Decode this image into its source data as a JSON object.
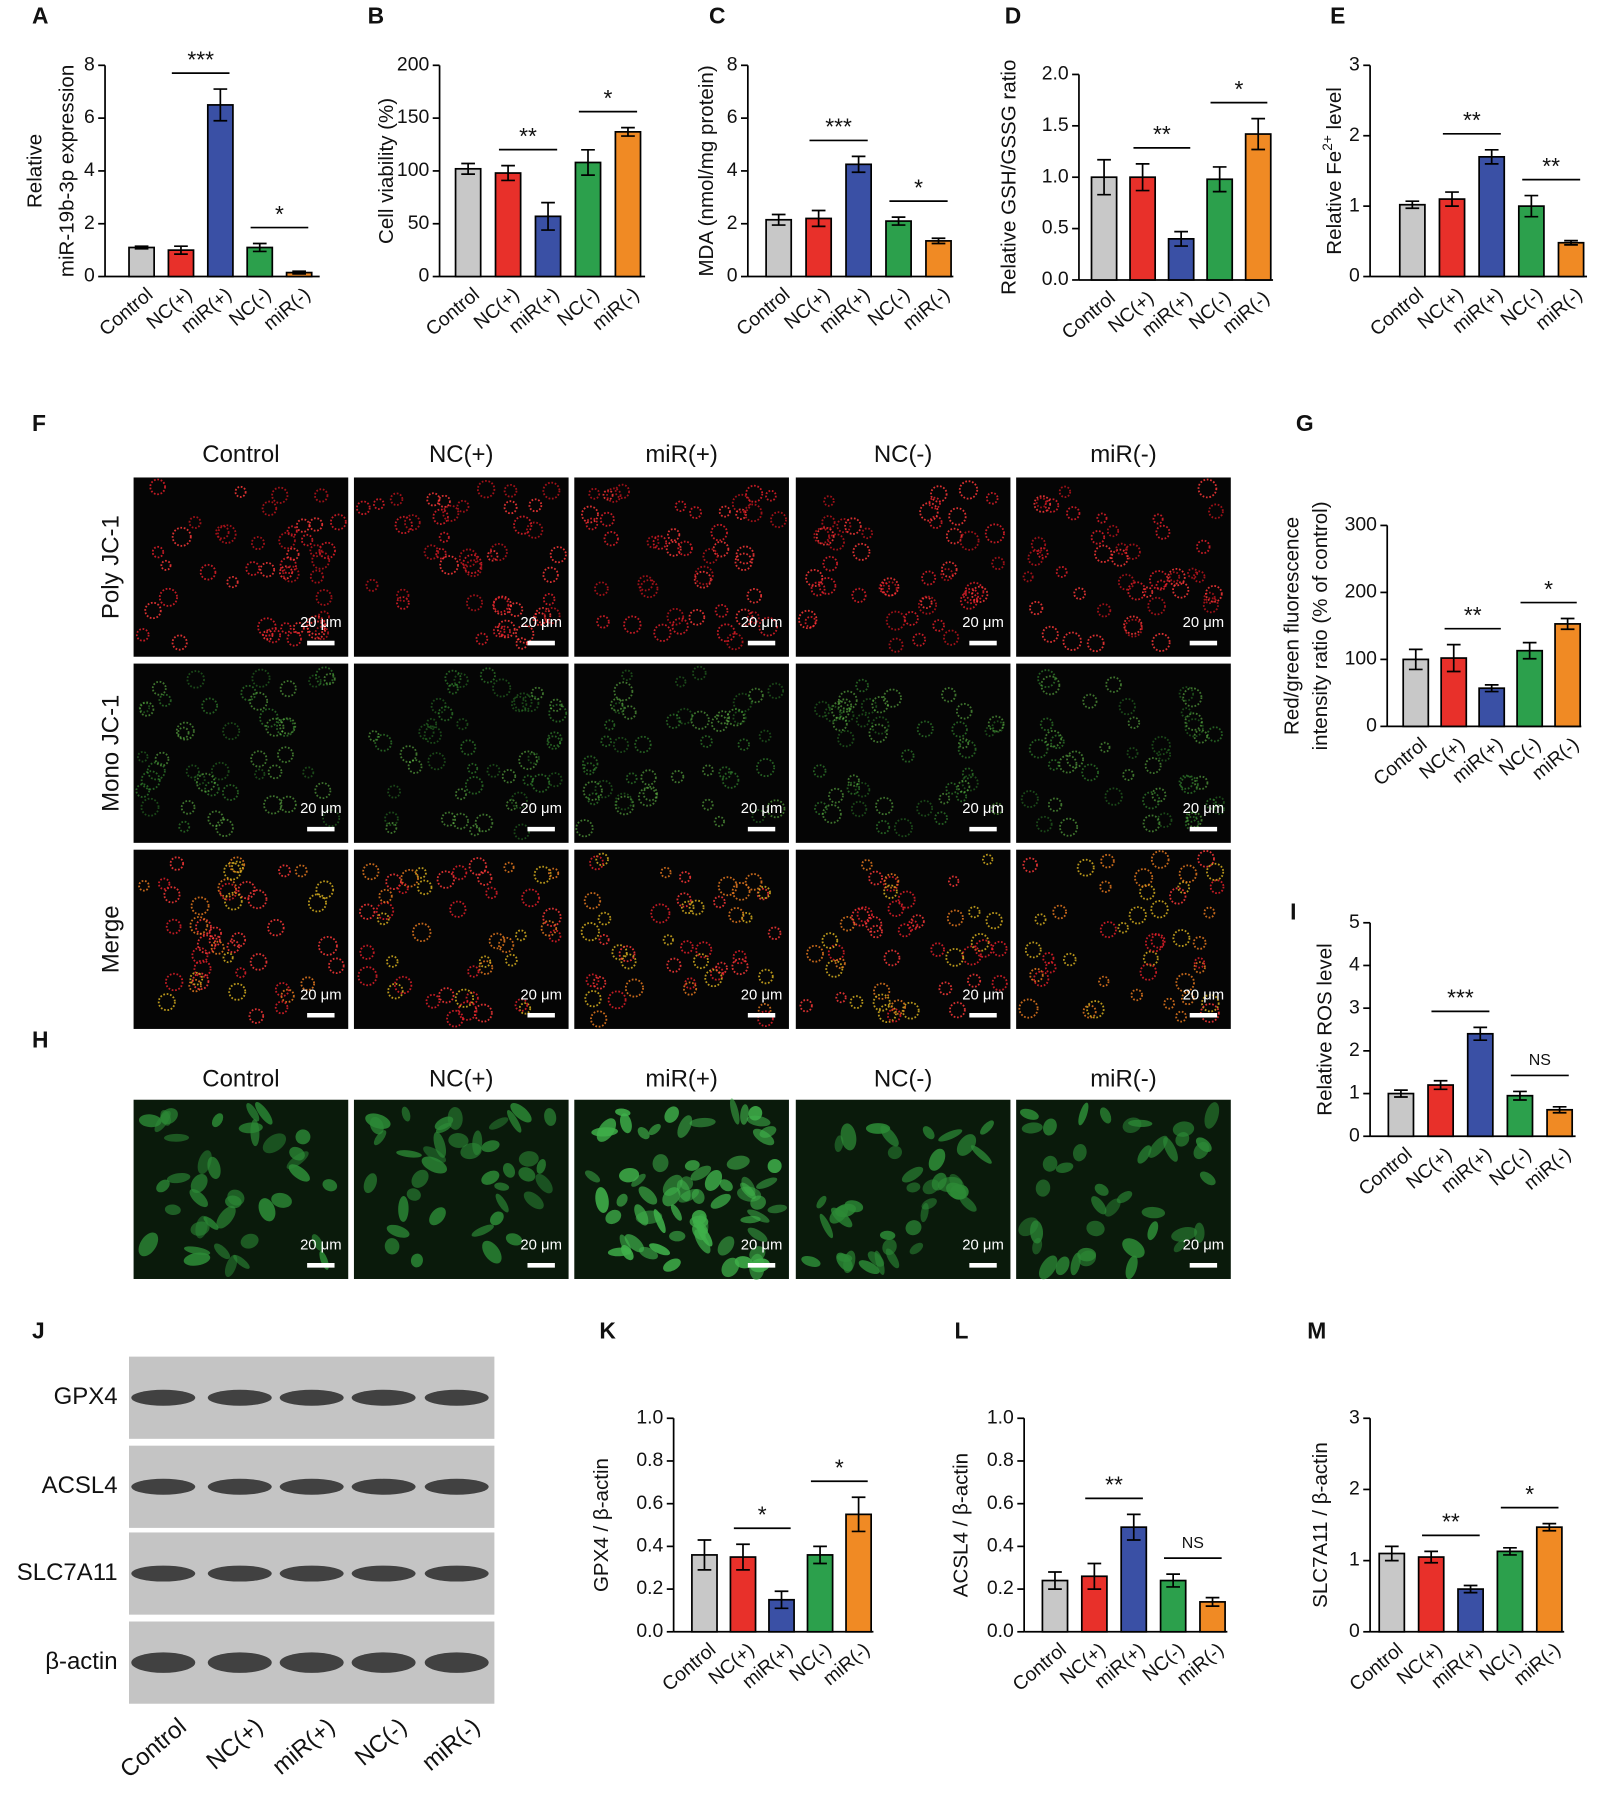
{
  "chart_data": [
    {
      "type": "bar",
      "label": "A",
      "ylabel": [
        "Relative",
        "miR-19b-3p expression"
      ],
      "categories": [
        "Control",
        "NC(+)",
        "miR(+)",
        "NC(-)",
        "miR(-)"
      ],
      "colors": [
        "#c8c8c8",
        "#e8302a",
        "#3a50a5",
        "#2ca04c",
        "#f08a24"
      ],
      "values": [
        1.1,
        1.0,
        6.5,
        1.1,
        0.15
      ],
      "errors": [
        0.05,
        0.15,
        0.6,
        0.15,
        0.05
      ],
      "ylim": [
        0,
        8
      ],
      "yticks": [
        0,
        2,
        4,
        6,
        8
      ],
      "significance": [
        {
          "from": 1,
          "to": 2,
          "label": "***"
        },
        {
          "from": 3,
          "to": 4,
          "label": "*"
        }
      ]
    },
    {
      "type": "bar",
      "label": "B",
      "ylabel": [
        "Cell viability (%)"
      ],
      "categories": [
        "Control",
        "NC(+)",
        "miR(+)",
        "NC(-)",
        "miR(-)"
      ],
      "colors": [
        "#c8c8c8",
        "#e8302a",
        "#3a50a5",
        "#2ca04c",
        "#f08a24"
      ],
      "values": [
        102,
        98,
        57,
        108,
        137
      ],
      "errors": [
        5,
        7,
        13,
        12,
        4
      ],
      "ylim": [
        0,
        200
      ],
      "yticks": [
        0,
        50,
        100,
        150,
        200
      ],
      "significance": [
        {
          "from": 1,
          "to": 2,
          "label": "**"
        },
        {
          "from": 3,
          "to": 4,
          "label": "*"
        }
      ]
    },
    {
      "type": "bar",
      "label": "C",
      "ylabel": [
        "MDA (nmol/mg protein)"
      ],
      "categories": [
        "Control",
        "NC(+)",
        "miR(+)",
        "NC(-)",
        "miR(-)"
      ],
      "colors": [
        "#c8c8c8",
        "#e8302a",
        "#3a50a5",
        "#2ca04c",
        "#f08a24"
      ],
      "values": [
        2.15,
        2.2,
        4.25,
        2.1,
        1.35
      ],
      "errors": [
        0.2,
        0.3,
        0.3,
        0.15,
        0.1
      ],
      "ylim": [
        0,
        8
      ],
      "yticks": [
        0,
        2,
        4,
        6,
        8
      ],
      "significance": [
        {
          "from": 1,
          "to": 2,
          "label": "***"
        },
        {
          "from": 3,
          "to": 4,
          "label": "*"
        }
      ]
    },
    {
      "type": "bar",
      "label": "D",
      "ylabel": [
        "Relative GSH/GSSG ratio"
      ],
      "categories": [
        "Control",
        "NC(+)",
        "miR(+)",
        "NC(-)",
        "miR(-)"
      ],
      "colors": [
        "#c8c8c8",
        "#e8302a",
        "#3a50a5",
        "#2ca04c",
        "#f08a24"
      ],
      "values": [
        1.0,
        1.0,
        0.4,
        0.98,
        1.42
      ],
      "errors": [
        0.17,
        0.13,
        0.07,
        0.12,
        0.15
      ],
      "ylim": [
        0,
        2
      ],
      "yticks": [
        {
          "value": 0,
          "label": "0.0"
        },
        0.5,
        {
          "value": 1,
          "label": "1.0"
        },
        1.5,
        {
          "value": 2,
          "label": "2.0"
        }
      ],
      "significance": [
        {
          "from": 1,
          "to": 2,
          "label": "**"
        },
        {
          "from": 3,
          "to": 4,
          "label": "*"
        }
      ]
    },
    {
      "type": "bar",
      "label": "E",
      "ylabel": [
        "Relative Fe"
      ],
      "ylabel_sup": "2+",
      "ylabel_after": " level",
      "categories": [
        "Control",
        "NC(+)",
        "miR(+)",
        "NC(-)",
        "miR(-)"
      ],
      "colors": [
        "#c8c8c8",
        "#e8302a",
        "#3a50a5",
        "#2ca04c",
        "#f08a24"
      ],
      "values": [
        1.02,
        1.1,
        1.7,
        1.0,
        0.48
      ],
      "errors": [
        0.05,
        0.1,
        0.1,
        0.15,
        0.03
      ],
      "ylim": [
        0,
        3
      ],
      "yticks": [
        0,
        1,
        2,
        3
      ],
      "significance": [
        {
          "from": 1,
          "to": 2,
          "label": "**"
        },
        {
          "from": 3,
          "to": 4,
          "label": "**"
        }
      ]
    },
    {
      "type": "bar",
      "label": "G",
      "ylabel": [
        "Red/green fluorescence",
        "intensity ratio (% of control)"
      ],
      "categories": [
        "Control",
        "NC(+)",
        "miR(+)",
        "NC(-)",
        "miR(-)"
      ],
      "colors": [
        "#c8c8c8",
        "#e8302a",
        "#3a50a5",
        "#2ca04c",
        "#f08a24"
      ],
      "values": [
        100,
        102,
        57,
        113,
        153
      ],
      "errors": [
        15,
        20,
        5,
        12,
        8
      ],
      "ylim": [
        0,
        300
      ],
      "yticks": [
        0,
        100,
        200,
        300
      ],
      "significance": [
        {
          "from": 1,
          "to": 2,
          "label": "**"
        },
        {
          "from": 3,
          "to": 4,
          "label": "*"
        }
      ]
    },
    {
      "type": "bar",
      "label": "I",
      "ylabel": [
        "Relative ROS level"
      ],
      "categories": [
        "Control",
        "NC(+)",
        "miR(+)",
        "NC(-)",
        "miR(-)"
      ],
      "colors": [
        "#c8c8c8",
        "#e8302a",
        "#3a50a5",
        "#2ca04c",
        "#f08a24"
      ],
      "values": [
        1.0,
        1.2,
        2.4,
        0.95,
        0.62
      ],
      "errors": [
        0.08,
        0.1,
        0.15,
        0.1,
        0.07
      ],
      "ylim": [
        0,
        5
      ],
      "yticks": [
        0,
        1,
        2,
        3,
        4,
        5
      ],
      "significance": [
        {
          "from": 1,
          "to": 2,
          "label": "***"
        },
        {
          "from": 3,
          "to": 4,
          "label": "NS"
        }
      ]
    },
    {
      "type": "bar",
      "label": "K",
      "ylabel": [
        "GPX4 / β-actin"
      ],
      "categories": [
        "Control",
        "NC(+)",
        "miR(+)",
        "NC(-)",
        "miR(-)"
      ],
      "colors": [
        "#c8c8c8",
        "#e8302a",
        "#3a50a5",
        "#2ca04c",
        "#f08a24"
      ],
      "values": [
        0.36,
        0.35,
        0.15,
        0.36,
        0.55
      ],
      "errors": [
        0.07,
        0.06,
        0.04,
        0.04,
        0.08
      ],
      "ylim": [
        0,
        1
      ],
      "yticks": [
        {
          "value": 0,
          "label": "0.0"
        },
        0.2,
        0.4,
        0.6,
        0.8,
        {
          "value": 1,
          "label": "1.0"
        }
      ],
      "significance": [
        {
          "from": 1,
          "to": 2,
          "label": "*"
        },
        {
          "from": 3,
          "to": 4,
          "label": "*"
        }
      ]
    },
    {
      "type": "bar",
      "label": "L",
      "ylabel": [
        "ACSL4 / β-actin"
      ],
      "categories": [
        "Control",
        "NC(+)",
        "miR(+)",
        "NC(-)",
        "miR(-)"
      ],
      "colors": [
        "#c8c8c8",
        "#e8302a",
        "#3a50a5",
        "#2ca04c",
        "#f08a24"
      ],
      "values": [
        0.24,
        0.26,
        0.49,
        0.24,
        0.14
      ],
      "errors": [
        0.04,
        0.06,
        0.06,
        0.03,
        0.02
      ],
      "ylim": [
        0,
        1
      ],
      "yticks": [
        {
          "value": 0,
          "label": "0.0"
        },
        0.2,
        0.4,
        0.6,
        0.8,
        {
          "value": 1,
          "label": "1.0"
        }
      ],
      "significance": [
        {
          "from": 1,
          "to": 2,
          "label": "**"
        },
        {
          "from": 3,
          "to": 4,
          "label": "NS"
        }
      ]
    },
    {
      "type": "bar",
      "label": "M",
      "ylabel": [
        "SLC7A11 / β-actin"
      ],
      "categories": [
        "Control",
        "NC(+)",
        "miR(+)",
        "NC(-)",
        "miR(-)"
      ],
      "colors": [
        "#c8c8c8",
        "#e8302a",
        "#3a50a5",
        "#2ca04c",
        "#f08a24"
      ],
      "values": [
        1.1,
        1.05,
        0.6,
        1.13,
        1.47
      ],
      "errors": [
        0.1,
        0.08,
        0.05,
        0.05,
        0.05
      ],
      "ylim": [
        0,
        3
      ],
      "yticks": [
        0,
        1,
        2,
        3
      ],
      "significance": [
        {
          "from": 1,
          "to": 2,
          "label": "**"
        },
        {
          "from": 3,
          "to": 4,
          "label": "*"
        }
      ]
    }
  ],
  "microscopy": {
    "F": {
      "label": "F",
      "columns": [
        "Control",
        "NC(+)",
        "miR(+)",
        "NC(-)",
        "miR(-)"
      ],
      "rows": [
        "Poly JC-1",
        "Mono JC-1",
        "Merge"
      ],
      "scale_bar": "20 μm"
    },
    "H": {
      "label": "H",
      "columns": [
        "Control",
        "NC(+)",
        "miR(+)",
        "NC(-)",
        "miR(-)"
      ],
      "scale_bar": "20 μm"
    }
  },
  "blot": {
    "label": "J",
    "proteins": [
      "GPX4",
      "ACSL4",
      "SLC7A11",
      "β-actin"
    ],
    "lanes": [
      "Control",
      "NC(+)",
      "miR(+)",
      "NC(-)",
      "miR(-)"
    ]
  }
}
